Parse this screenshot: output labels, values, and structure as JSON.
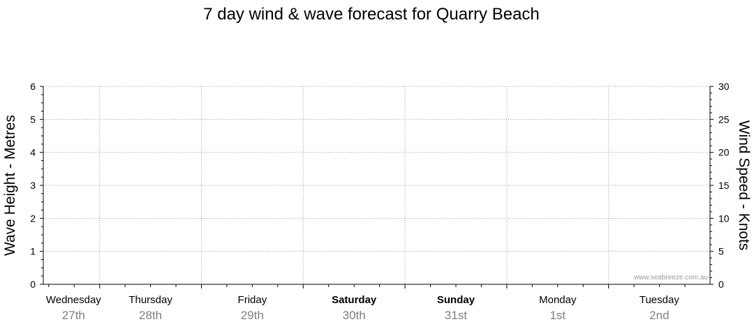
{
  "chart_data": {
    "type": "line",
    "title": "7 day wind & wave forecast for Quarry Beach",
    "ylabel_left": "Wave Height - Metres",
    "ylabel_right": "Wind Speed - Knots",
    "ylim_left": [
      0,
      6
    ],
    "ylim_right": [
      0,
      30
    ],
    "yticks_left": [
      0,
      1,
      2,
      3,
      4,
      5,
      6
    ],
    "yticks_right": [
      0,
      5,
      10,
      15,
      20,
      25,
      30
    ],
    "grid": true,
    "days": [
      {
        "name": "Wednesday",
        "date": "27th",
        "bold": false
      },
      {
        "name": "Thursday",
        "date": "28th",
        "bold": false
      },
      {
        "name": "Friday",
        "date": "29th",
        "bold": false
      },
      {
        "name": "Saturday",
        "date": "30th",
        "bold": true
      },
      {
        "name": "Sunday",
        "date": "31st",
        "bold": true
      },
      {
        "name": "Monday",
        "date": "1st",
        "bold": false
      },
      {
        "name": "Tuesday",
        "date": "2nd",
        "bold": false
      }
    ],
    "series": []
  },
  "watermark": "www.seabreeze.com.au"
}
